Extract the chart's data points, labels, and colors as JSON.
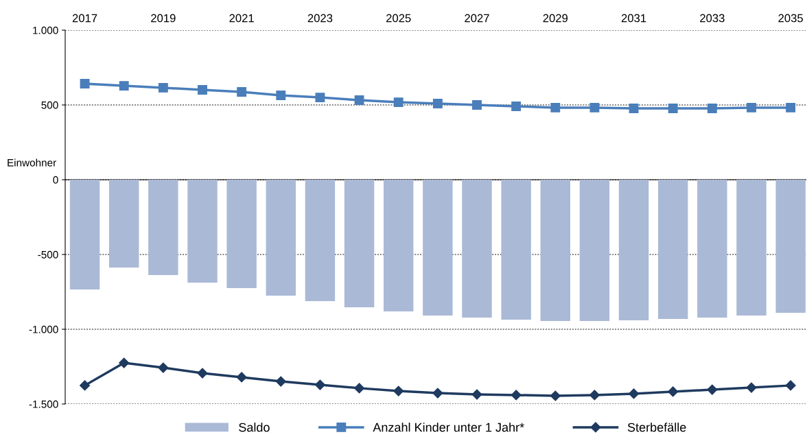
{
  "chart_data": {
    "type": "bar",
    "ylabel": "Einwohner",
    "x": [
      2017,
      2018,
      2019,
      2020,
      2021,
      2022,
      2023,
      2024,
      2025,
      2026,
      2027,
      2028,
      2029,
      2030,
      2031,
      2032,
      2033,
      2034,
      2035
    ],
    "series": [
      {
        "name": "Saldo",
        "color": "#aab9d6",
        "values": [
          -734,
          -587,
          -638,
          -688,
          -725,
          -775,
          -812,
          -853,
          -881,
          -908,
          -922,
          -936,
          -945,
          -945,
          -940,
          -931,
          -922,
          -908,
          -890
        ]
      },
      {
        "name": "Anzahl Kinder unter 1 Jahr*",
        "type": "line",
        "color": "#4a7ebb",
        "marker": "square",
        "values": [
          642,
          628,
          615,
          601,
          587,
          564,
          550,
          532,
          518,
          509,
          500,
          491,
          482,
          482,
          477,
          477,
          477,
          482,
          482
        ]
      },
      {
        "name": "Sterbefälle",
        "type": "line",
        "color": "#1f3a5f",
        "marker": "diamond",
        "values": [
          -1376,
          -1225,
          -1257,
          -1294,
          -1321,
          -1349,
          -1372,
          -1394,
          -1413,
          -1427,
          -1436,
          -1440,
          -1445,
          -1440,
          -1431,
          -1417,
          -1404,
          -1390,
          -1376
        ]
      }
    ],
    "xlim": [
      2016.5,
      2035.4
    ],
    "xticks": [
      2017,
      2019,
      2021,
      2023,
      2025,
      2027,
      2029,
      2031,
      2033,
      2035
    ],
    "ylim": [
      -1500,
      1000
    ],
    "yticks": [
      {
        "value": -1500,
        "label": "-1.500"
      },
      {
        "value": -1000,
        "label": "-1.000"
      },
      -500,
      0,
      500,
      {
        "value": 1000,
        "label": "1.000"
      }
    ],
    "grid": "y",
    "legend": "bottom"
  }
}
